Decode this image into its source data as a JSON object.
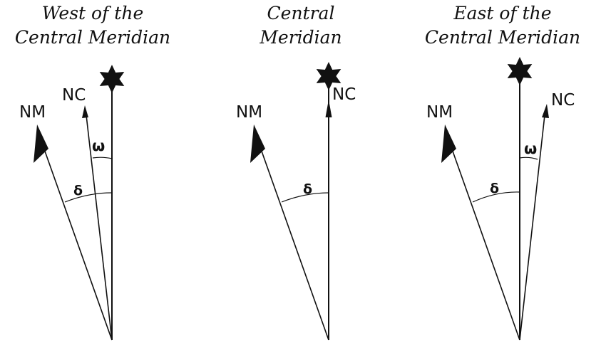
{
  "panels": [
    {
      "title_line1": "West of the",
      "title_line2": "Central Meridian",
      "nm_label": "NM",
      "nc_label": "NC",
      "omega_label": "ω",
      "delta_label": "δ"
    },
    {
      "title_line1": "Central",
      "title_line2": "Meridian",
      "nm_label": "NM",
      "nc_label": "NC",
      "delta_label": "δ"
    },
    {
      "title_line1": "East of the",
      "title_line2": "Central Meridian",
      "nm_label": "NM",
      "nc_label": "NC",
      "omega_label": "ω",
      "delta_label": "δ"
    }
  ],
  "colors": {
    "ink": "#111111",
    "background": "#ffffff"
  },
  "icons": {
    "geographic_north": "star-icon",
    "magnetic_north": "half-arrowhead-icon"
  }
}
